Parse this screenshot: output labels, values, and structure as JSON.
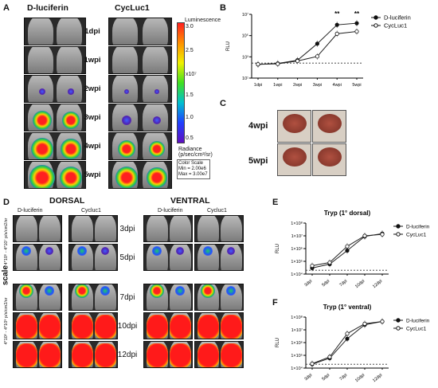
{
  "panels": {
    "a": {
      "label": "A",
      "col1": "D-luciferin",
      "col2": "CycLuc1",
      "rows": [
        "1dpi",
        "1wpi",
        "2wpi",
        "3wpi",
        "4wpi",
        "5wpi"
      ],
      "colorbar": {
        "title": "Luminescence",
        "top": "3.0",
        "mid1": "2.5",
        "mid2": "1.5",
        "low": "1.0",
        "bottom": "0.5",
        "exp": "x10⁷",
        "radiance": "Radiance (p/sec/cm²/sr)",
        "scale": "Color Scale",
        "min": "Min = 2.00e6",
        "max": "Max = 3.00e7"
      }
    },
    "b": {
      "label": "B",
      "ylabel": "RLU",
      "legend": [
        "D-luciferin",
        "CycLuc1"
      ],
      "sig": [
        "**",
        "**"
      ]
    },
    "c": {
      "label": "C",
      "rows": [
        "4wpi",
        "5wpi"
      ]
    },
    "d": {
      "label": "D",
      "dorsal": "DORSAL",
      "ventral": "VENTRAL",
      "col1": "D-luciferin",
      "col2": "Cycluc1",
      "rows": [
        "3dpi",
        "5dpi",
        "7dpi",
        "10dpi",
        "12dpi"
      ],
      "scale_word": "scale",
      "scale1": "4*10⁶ - 4*10⁷ p/s/cm2/sr",
      "scale2": "4*10⁶ - 4*10⁸ p/s/cm2/sr"
    },
    "e": {
      "label": "E",
      "title": "Tryp (1° dorsal)",
      "ylabel": "RLU",
      "legend": [
        "D-luciferin",
        "CycLuc1"
      ]
    },
    "f": {
      "label": "F",
      "title": "Tryp (1° ventral)",
      "ylabel": "RLU",
      "legend": [
        "D-luciferin",
        "CycLuc1"
      ]
    }
  },
  "chart_data": [
    {
      "id": "B",
      "type": "line",
      "xlabel": "",
      "ylabel": "RLU",
      "categories": [
        "1dpi",
        "1wpi",
        "2wpi",
        "3wpi",
        "4wpi",
        "5wpi"
      ],
      "yticks": [
        "10¹",
        "10³",
        "10⁵",
        "10⁷"
      ],
      "ylog": true,
      "ylim": [
        100,
        10000000
      ],
      "threshold": 1500,
      "series": [
        {
          "name": "D-luciferin",
          "marker": "filled",
          "values": [
            1200,
            1400,
            2500,
            50000,
            1500000,
            2000000
          ]
        },
        {
          "name": "CycLuc1",
          "marker": "open",
          "values": [
            1200,
            1300,
            2200,
            5000,
            300000,
            450000
          ]
        }
      ],
      "legend": "top-right"
    },
    {
      "id": "E",
      "type": "line",
      "title": "Tryp (1° dorsal)",
      "ylabel": "RLU",
      "categories": [
        "3dpi",
        "5dpi",
        "7dpi",
        "10dpi",
        "12dpi"
      ],
      "yticks": [
        "1×10⁴",
        "1×10⁵",
        "1×10⁶",
        "1×10⁷",
        "1×10⁸"
      ],
      "ylog": true,
      "ylim": [
        10000,
        100000000
      ],
      "threshold": 20000,
      "series": [
        {
          "name": "D-luciferin",
          "marker": "filled",
          "values": [
            30000,
            60000,
            700000,
            9000000,
            15000000
          ]
        },
        {
          "name": "CycLuc1",
          "marker": "open",
          "values": [
            45000,
            80000,
            1500000,
            10000000,
            13000000
          ]
        }
      ],
      "legend": "top-right"
    },
    {
      "id": "F",
      "type": "line",
      "title": "Tryp (1° ventral)",
      "ylabel": "RLU",
      "categories": [
        "3dpi",
        "5dpi",
        "7dpi",
        "10dpi",
        "12dpi"
      ],
      "yticks": [
        "1×10⁴",
        "1×10⁵",
        "1×10⁶",
        "1×10⁷",
        "1×10⁸"
      ],
      "ylog": true,
      "ylim": [
        10000,
        100000000
      ],
      "threshold": 20000,
      "series": [
        {
          "name": "D-luciferin",
          "marker": "filled",
          "values": [
            20000,
            60000,
            2000000,
            25000000,
            45000000
          ]
        },
        {
          "name": "CycLuc1",
          "marker": "open",
          "values": [
            22000,
            75000,
            5000000,
            30000000,
            45000000
          ]
        }
      ],
      "legend": "top-right"
    }
  ]
}
